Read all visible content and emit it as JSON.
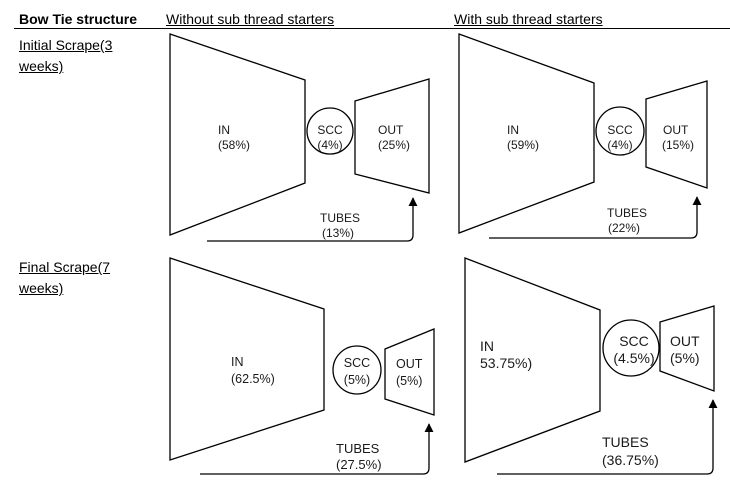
{
  "table": {
    "corner_label": "Bow Tie structure",
    "columns": [
      "Without sub thread starters",
      "With sub thread starters"
    ],
    "rows": [
      {
        "label_line1": "Initial Scrape(3",
        "label_line2": "weeks)"
      },
      {
        "label_line1": "Final Scrape(7",
        "label_line2": "weeks)"
      }
    ]
  },
  "diagrams": [
    {
      "in_label": "IN",
      "in_value": "(58%)",
      "scc_label": "SCC",
      "scc_value": "(4%)",
      "out_label": "OUT",
      "out_value": "(25%)",
      "tubes_label": "TUBES",
      "tubes_value": "(13%)"
    },
    {
      "in_label": "IN",
      "in_value": "(59%)",
      "scc_label": "SCC",
      "scc_value": "(4%)",
      "out_label": "OUT",
      "out_value": "(15%)",
      "tubes_label": "TUBES",
      "tubes_value": "(22%)"
    },
    {
      "in_label": "IN",
      "in_value": "(62.5%)",
      "scc_label": "SCC",
      "scc_value": "(5%)",
      "out_label": "OUT",
      "out_value": "(5%)",
      "tubes_label": "TUBES",
      "tubes_value": "(27.5%)"
    },
    {
      "in_label": "IN",
      "in_value": "53.75%)",
      "scc_label": "SCC",
      "scc_value": "(4.5%)",
      "out_label": "OUT",
      "out_value": "(5%)",
      "tubes_label": "TUBES",
      "tubes_value": "(36.75%)"
    }
  ]
}
